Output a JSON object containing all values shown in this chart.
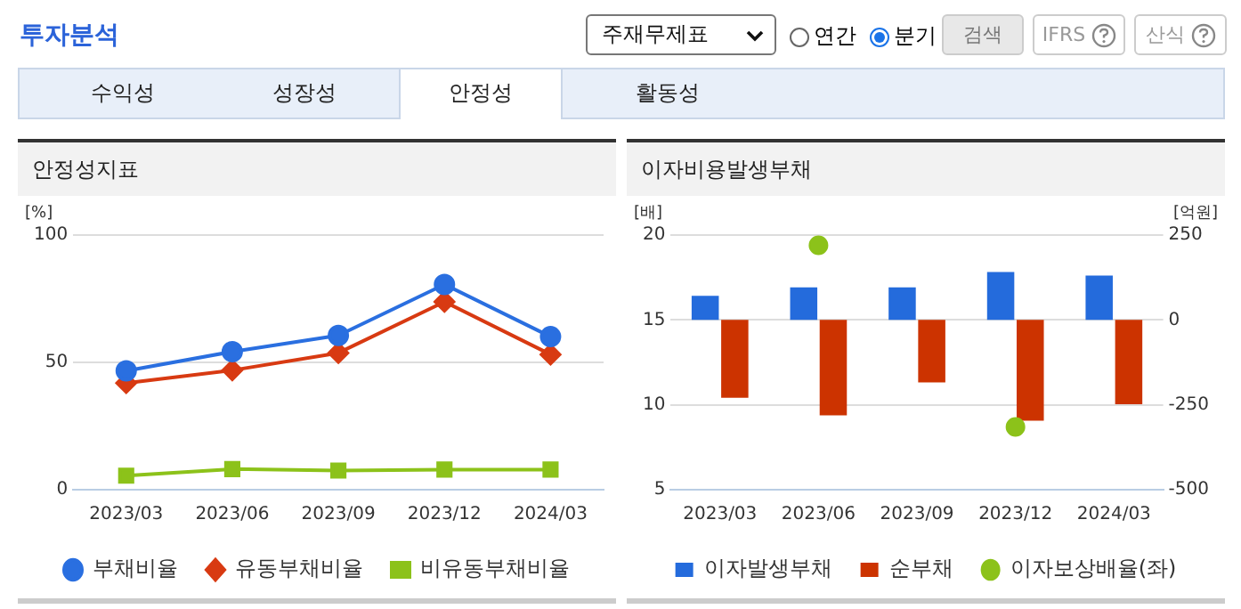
{
  "chart_data": [
    {
      "type": "other",
      "title": "투자분석",
      "annotations": [
        "주재무제표",
        "연간",
        "분기",
        "검색",
        "IFRS",
        "산식",
        "수익성",
        "성장성",
        "안정성",
        "활동성"
      ]
    },
    {
      "type": "line",
      "title": "안정성지표",
      "ylabel": "[%]",
      "categories": [
        "2023/03",
        "2023/06",
        "2023/09",
        "2023/12",
        "2024/03"
      ],
      "ylim": [
        0,
        100
      ],
      "yticks": [
        0,
        50,
        100
      ],
      "grid": "y",
      "legend": "bottom",
      "series": [
        {
          "name": "부채비율",
          "color": "#2a6fe0",
          "marker": "circle",
          "values": [
            46.7,
            54.2,
            60.6,
            80.6,
            60.1
          ]
        },
        {
          "name": "유동부채비율",
          "color": "#d83a12",
          "marker": "diamond",
          "values": [
            41.9,
            46.9,
            53.7,
            73.8,
            53.1
          ]
        },
        {
          "name": "비유동부채비율",
          "color": "#8cc21a",
          "marker": "square",
          "values": [
            5.5,
            8.1,
            7.5,
            7.9,
            7.9
          ]
        }
      ]
    },
    {
      "type": "bar",
      "title": "이자비용발생부채",
      "ylabel": "[배]",
      "y2label": "[억원]",
      "categories": [
        "2023/03",
        "2023/06",
        "2023/09",
        "2023/12",
        "2024/03"
      ],
      "ylim": [
        5,
        20
      ],
      "yticks": [
        5,
        10,
        15,
        20
      ],
      "y2lim": [
        -500,
        250
      ],
      "y2ticks": [
        -500,
        -250,
        0,
        250
      ],
      "grid": "y",
      "legend": "bottom",
      "series": [
        {
          "name": "이자발생부채",
          "color": "#246bdc",
          "axis": "y2",
          "values": [
            71,
            96,
            96,
            141,
            131
          ]
        },
        {
          "name": "순부채",
          "color": "#cc3300",
          "axis": "y2",
          "values": [
            -229,
            -281,
            -184,
            -297,
            -248
          ]
        },
        {
          "name": "이자보상배율(좌)",
          "type": "scatter",
          "color": "#8cc21a",
          "marker": "circle",
          "values": [
            null,
            19.4,
            null,
            8.7,
            null
          ]
        }
      ]
    }
  ]
}
